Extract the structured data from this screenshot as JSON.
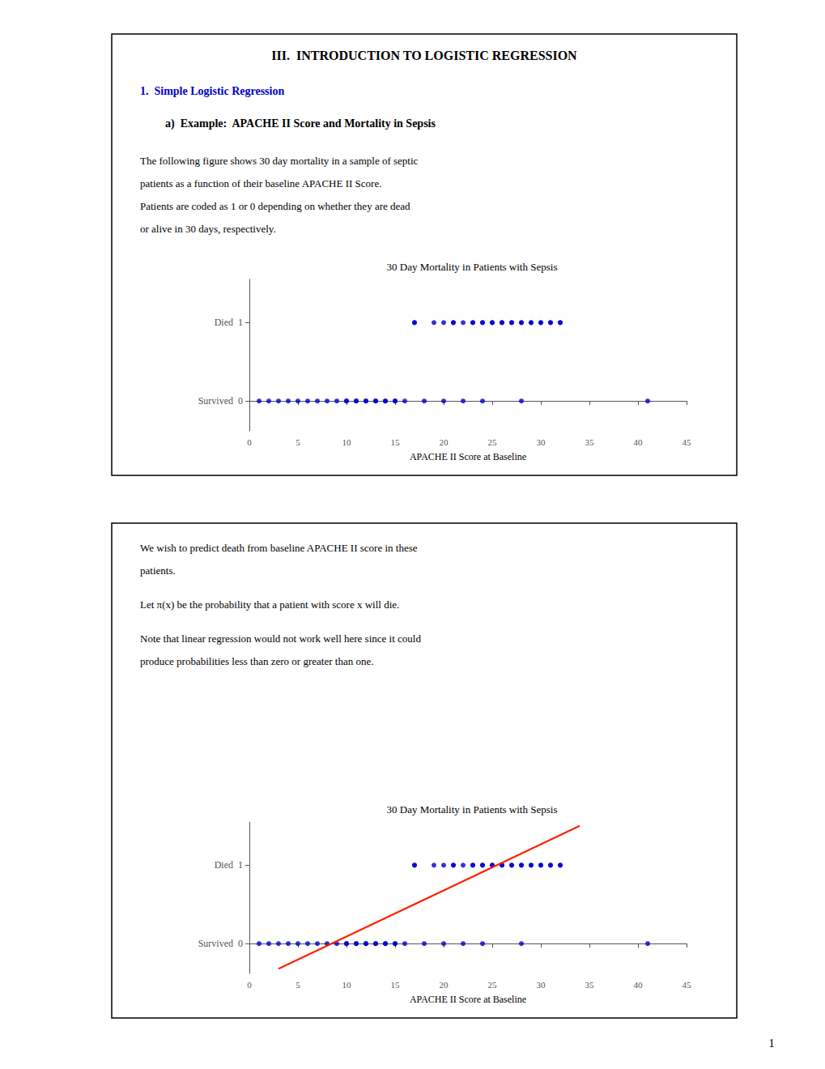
{
  "chart_data": [
    {
      "type": "scatter",
      "title": "30 Day Mortality in Patients with Sepsis",
      "xlabel": "APACHE II Score at Baseline",
      "annotations": [
        {
          "text": "III.  INTRODUCTION TO LOGISTIC REGRESSION"
        },
        {
          "text": "1.  Simple Logistic Regression",
          "color": "#0000cc"
        },
        {
          "text": "a)  Example:  APACHE II Score and Mortality in Sepsis"
        },
        {
          "text": "The following figure shows 30 day mortality in a sample of septic"
        },
        {
          "text": "patients as a function of their baseline APACHE II Score."
        },
        {
          "text": "Patients are coded as 1 or 0 depending on whether they are dead"
        },
        {
          "text": "or alive in 30 days, respectively."
        }
      ],
      "xlim": [
        0,
        45
      ],
      "xticks": [
        0,
        5,
        10,
        15,
        20,
        25,
        30,
        35,
        40,
        45
      ],
      "ylim": [
        -0.38,
        1.55
      ],
      "yticks": [
        {
          "value": 0,
          "label": "Survived  0"
        },
        {
          "value": 1,
          "label": "Died  1"
        }
      ],
      "grid": false,
      "series": [
        {
          "type": "scatter",
          "color": "#0000cc",
          "x": [
            17,
            17,
            19,
            20,
            21,
            21,
            22,
            23,
            23,
            24,
            24,
            25,
            25,
            26,
            26,
            27,
            27,
            28,
            28,
            29,
            29,
            30,
            30,
            31,
            31,
            32,
            32
          ],
          "values": [
            1,
            1,
            1,
            1,
            1,
            1,
            1,
            1,
            1,
            1,
            1,
            1,
            1,
            1,
            1,
            1,
            1,
            1,
            1,
            1,
            1,
            1,
            1,
            1,
            1,
            1,
            1
          ]
        },
        {
          "type": "scatter",
          "color": "#0000cc",
          "x": [
            1,
            2,
            3,
            4,
            5,
            6,
            7,
            8,
            9,
            10,
            10,
            11,
            11,
            12,
            12,
            13,
            13,
            14,
            14,
            15,
            15,
            16,
            18,
            20,
            22,
            24,
            28,
            41
          ],
          "values": [
            0,
            0,
            0,
            0,
            0,
            0,
            0,
            0,
            0,
            0,
            0,
            0,
            0,
            0,
            0,
            0,
            0,
            0,
            0,
            0,
            0,
            0,
            0,
            0,
            0,
            0,
            0,
            0
          ]
        }
      ]
    },
    {
      "type": "scatter",
      "title": "30 Day Mortality in Patients with Sepsis",
      "xlabel": "APACHE II Score at Baseline",
      "annotations": [
        {
          "text": "We wish to predict death from baseline APACHE II score in these"
        },
        {
          "text": "patients."
        },
        {
          "text": "Let π(x) be the probability that a patient with score x will die."
        },
        {
          "text": "Note that linear regression would not work well here since it could"
        },
        {
          "text": "produce probabilities less than zero or greater than one."
        },
        {
          "text": "1"
        }
      ],
      "xlim": [
        0,
        45
      ],
      "xticks": [
        0,
        5,
        10,
        15,
        20,
        25,
        30,
        35,
        40,
        45
      ],
      "ylim": [
        -0.38,
        1.55
      ],
      "yticks": [
        {
          "value": 0,
          "label": "Survived  0"
        },
        {
          "value": 1,
          "label": "Died  1"
        }
      ],
      "grid": false,
      "series": [
        {
          "type": "scatter",
          "color": "#0000cc",
          "x": [
            17,
            17,
            19,
            20,
            21,
            21,
            22,
            23,
            23,
            24,
            24,
            25,
            25,
            26,
            26,
            27,
            27,
            28,
            28,
            29,
            29,
            30,
            30,
            31,
            31,
            32,
            32
          ],
          "values": [
            1,
            1,
            1,
            1,
            1,
            1,
            1,
            1,
            1,
            1,
            1,
            1,
            1,
            1,
            1,
            1,
            1,
            1,
            1,
            1,
            1,
            1,
            1,
            1,
            1,
            1,
            1
          ]
        },
        {
          "type": "scatter",
          "color": "#0000cc",
          "x": [
            1,
            2,
            3,
            4,
            5,
            6,
            7,
            8,
            9,
            10,
            10,
            11,
            11,
            12,
            12,
            13,
            13,
            14,
            14,
            15,
            15,
            16,
            18,
            20,
            22,
            24,
            28,
            41
          ],
          "values": [
            0,
            0,
            0,
            0,
            0,
            0,
            0,
            0,
            0,
            0,
            0,
            0,
            0,
            0,
            0,
            0,
            0,
            0,
            0,
            0,
            0,
            0,
            0,
            0,
            0,
            0,
            0,
            0
          ]
        },
        {
          "type": "line",
          "color": "#ff2200",
          "x": [
            3,
            34
          ],
          "values": [
            -0.32,
            1.5
          ]
        }
      ]
    }
  ]
}
